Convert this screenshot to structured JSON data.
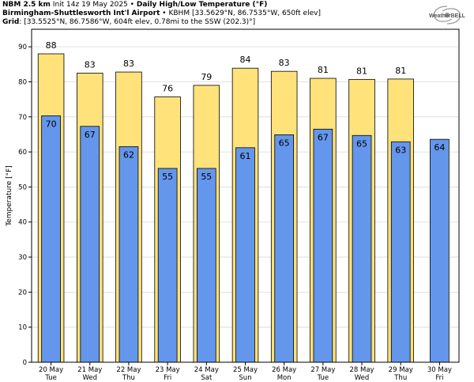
{
  "header": {
    "model": "NBM 2.5 km",
    "init": "Init 14z 19 May 2025",
    "bullet": "•",
    "title": "Daily High/Low Temperature (°F)",
    "location": "Birmingham-Shuttlesworth Int'l Airport",
    "station": "KBHM [33.5629°N, 86.7535°W, 650ft elev]",
    "grid_label": "Grid",
    "grid_info": ": [33.5525°N, 86.7586°W, 604ft elev, 0.78mi to the SSW (202.3)°]"
  },
  "logo": {
    "name": "WeatherBELL",
    "icon": "storm-swirl-icon"
  },
  "colors": {
    "high": "#FFE27A",
    "low": "#6496EC",
    "outline": "#000000",
    "grid": "#d9d9d9"
  },
  "chart_data": {
    "type": "bar",
    "ylabel": "Temperature [°F]",
    "ylim": [
      0,
      95
    ],
    "yticks": [
      0,
      10,
      20,
      30,
      40,
      50,
      60,
      70,
      80,
      90
    ],
    "grid": true,
    "categories": [
      "20 May",
      "21 May",
      "22 May",
      "23 May",
      "24 May",
      "25 May",
      "26 May",
      "27 May",
      "28 May",
      "29 May",
      "30 May"
    ],
    "days": [
      "Tue",
      "Wed",
      "Thu",
      "Fri",
      "Sat",
      "Sun",
      "Mon",
      "Tue",
      "Wed",
      "Thu",
      "Fri"
    ],
    "series": [
      {
        "name": "High",
        "values": [
          88,
          82.5,
          82.8,
          75.7,
          79,
          83.9,
          83,
          81,
          80.7,
          80.8,
          null
        ],
        "labels": [
          "88",
          "83",
          "83",
          "76",
          "79",
          "84",
          "83",
          "81",
          "81",
          "81",
          ""
        ]
      },
      {
        "name": "Low",
        "values": [
          70.3,
          67.3,
          61.5,
          55.3,
          55.3,
          61.2,
          64.9,
          66.5,
          64.7,
          62.9,
          63.6
        ],
        "labels": [
          "70",
          "67",
          "62",
          "55",
          "55",
          "61",
          "65",
          "67",
          "65",
          "63",
          "64"
        ]
      }
    ]
  }
}
